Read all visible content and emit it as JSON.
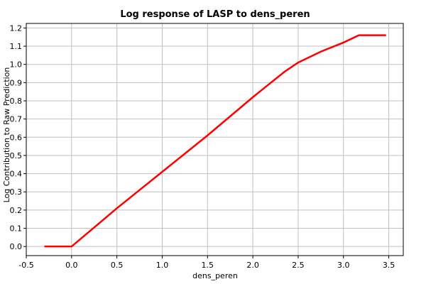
{
  "chart_data": {
    "type": "line",
    "title": "Log response of LASP to dens_peren",
    "x_label": "dens_peren",
    "y_label": "Log Contribution to Raw Prediction",
    "x": [
      -0.3,
      0,
      0.5,
      1.0,
      1.5,
      2.0,
      2.35,
      2.5,
      2.75,
      3.0,
      3.17,
      3.47
    ],
    "series": [
      {
        "color": "#ff0000",
        "values": [
          0,
          0,
          0.21,
          0.41,
          0.61,
          0.82,
          0.96,
          1.01,
          1.07,
          1.12,
          1.16,
          1.16
        ]
      }
    ],
    "xlim": [
      -0.5,
      3.66
    ],
    "ylim": [
      -0.05,
      1.225
    ],
    "xticks": [
      -0.5,
      {
        "value": 0,
        "label": "0.0"
      },
      0.5,
      {
        "value": 1,
        "label": "1.0"
      },
      1.5,
      {
        "value": 2,
        "label": "2.0"
      },
      2.5,
      {
        "value": 3,
        "label": "3.0"
      },
      3.5
    ],
    "yticks": [
      {
        "value": 0,
        "label": "0.0"
      },
      0.1,
      0.2,
      0.3,
      0.4,
      0.5,
      0.6,
      0.7,
      0.8,
      0.9,
      {
        "value": 1,
        "label": "1.0"
      },
      1.1,
      1.2
    ],
    "grid": true
  }
}
